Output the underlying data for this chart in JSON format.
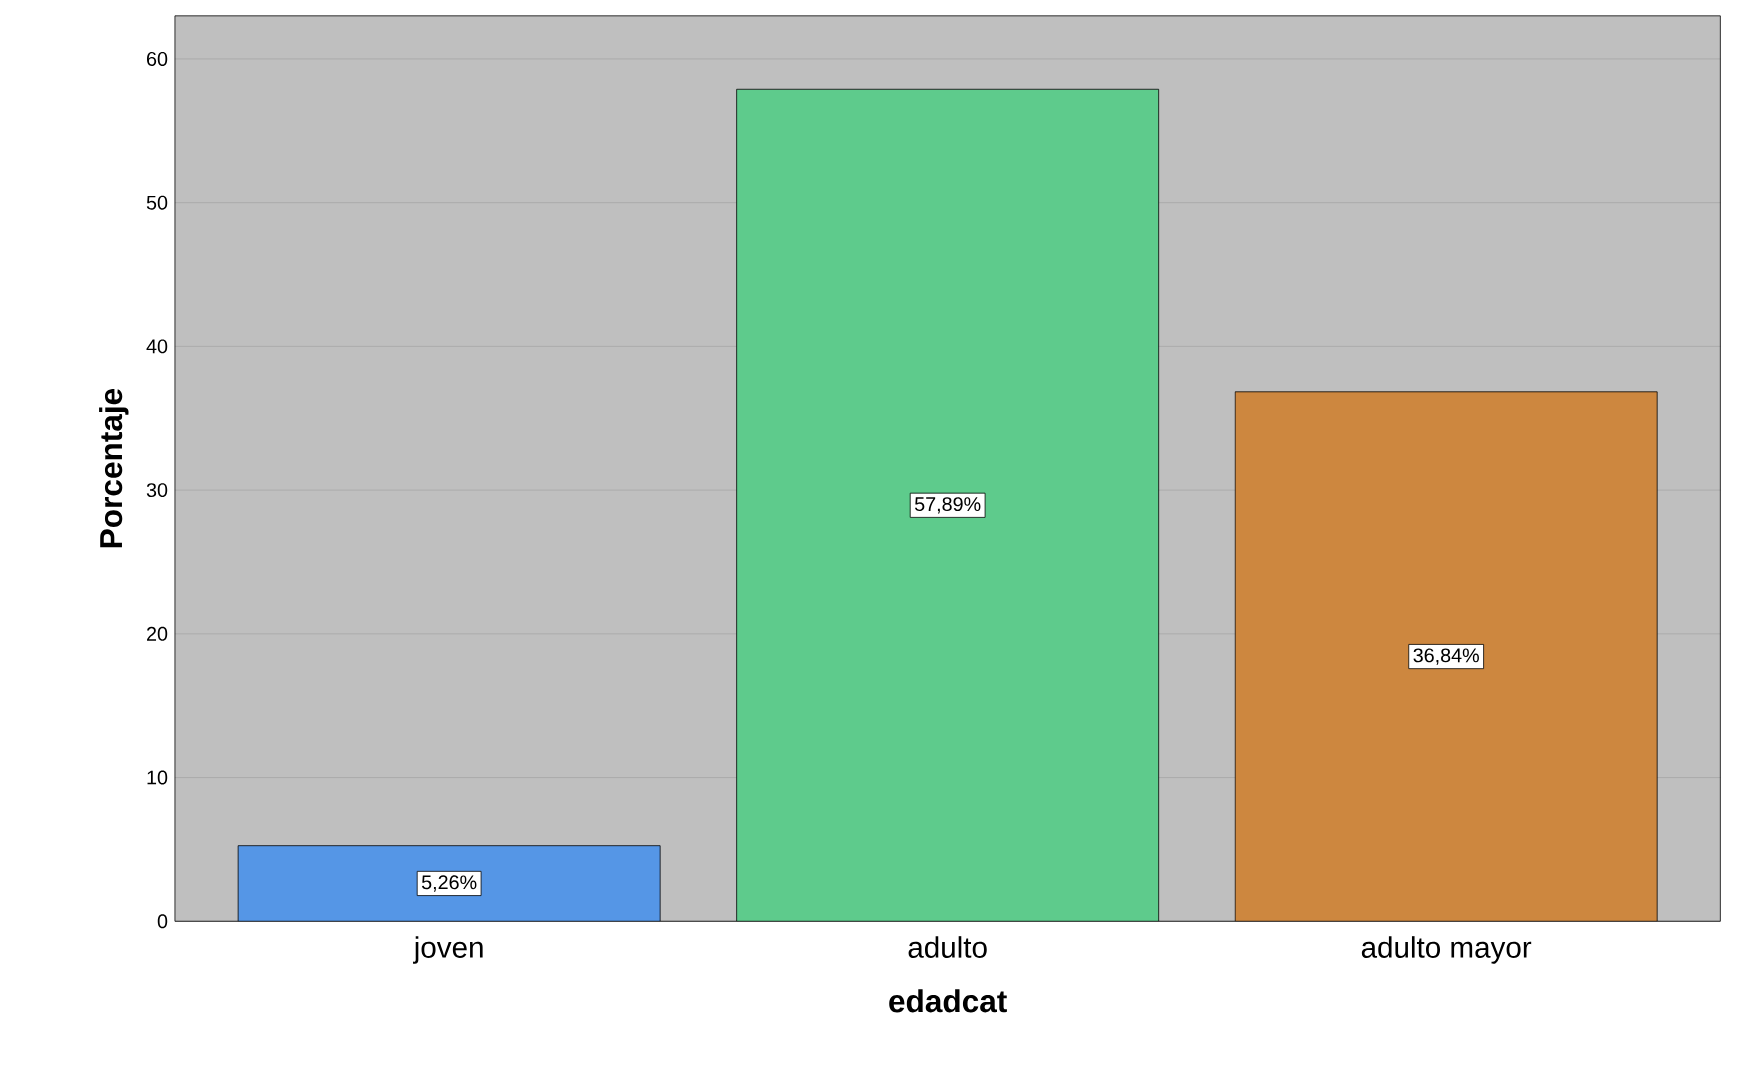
{
  "chart_data": {
    "type": "bar",
    "xlabel": "edadcat",
    "ylabel": "Porcentaje",
    "categories": [
      "joven",
      "adulto",
      "adulto mayor"
    ],
    "values": [
      5.26,
      57.89,
      36.84
    ],
    "colors": [
      "#5596e6",
      "#5ecb8c",
      "#cd873f"
    ],
    "value_labels": [
      "5,26%",
      "57,89%",
      "36,84%"
    ],
    "ylim": [
      0,
      63
    ],
    "yticks": [
      0,
      10,
      20,
      30,
      40,
      50,
      60
    ],
    "grid": "y"
  }
}
